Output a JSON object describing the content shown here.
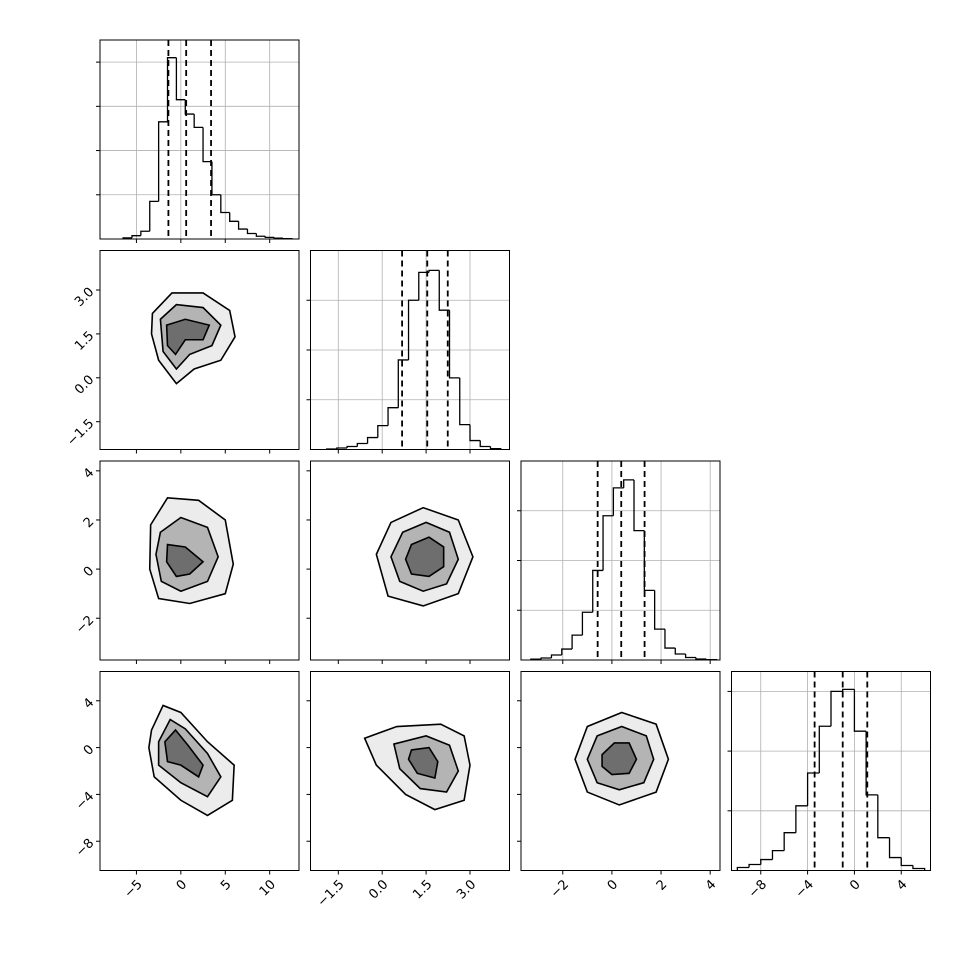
{
  "chart_data": [
    {
      "type": "histogram",
      "bins": [
        -6.5,
        -5.5,
        -4.5,
        -3.5,
        -2.5,
        -1.5,
        -0.5,
        0.5,
        1.5,
        2.5,
        3.5,
        4.5,
        5.5,
        6.5,
        7.5,
        8.5,
        9.5,
        10.5,
        11.5,
        12.5
      ],
      "counts": [
        10,
        30,
        70,
        340,
        1060,
        1640,
        1260,
        1130,
        1010,
        700,
        400,
        240,
        160,
        90,
        50,
        25,
        15,
        8,
        3
      ],
      "quantiles": [
        -1.4,
        0.6,
        3.4
      ],
      "xlim": [
        -9.1,
        13.3
      ],
      "ylim": [
        0,
        1800
      ],
      "xticks": [
        {
          "value": -5,
          "label": "−5"
        },
        0,
        5,
        10
      ],
      "yticks": [
        400,
        800,
        1200,
        1600
      ],
      "grid": true,
      "x_tick_labels": false,
      "y_tick_labels": false
    },
    {
      "type": "contour",
      "xlim": [
        -9.1,
        13.3
      ],
      "ylim": [
        -2.45,
        4.35
      ],
      "xticks": [
        {
          "value": -5,
          "label": "−5"
        },
        0,
        5,
        10
      ],
      "yticks": [
        {
          "value": -1.5,
          "label": "−1.5"
        },
        {
          "value": 0,
          "label": "0.0"
        },
        1.5,
        {
          "value": 3,
          "label": "3.0"
        }
      ],
      "x_tick_labels": false,
      "y_tick_labels": true,
      "contours": [
        {
          "color": "#ececec",
          "x": [
            -3.2,
            -1,
            2.5,
            5.5,
            6.1,
            4.5,
            1.5,
            -0.5,
            -2.5,
            -3.3
          ],
          "y": [
            2.2,
            2.9,
            2.9,
            2.3,
            1.4,
            0.6,
            0.3,
            -0.2,
            0.6,
            1.5
          ]
        },
        {
          "color": "#b4b4b4",
          "x": [
            -2.3,
            -0.5,
            2.5,
            4.5,
            3.5,
            1,
            -0.5,
            -2.0
          ],
          "y": [
            2.0,
            2.5,
            2.4,
            1.8,
            1.1,
            0.8,
            0.3,
            0.9
          ]
        },
        {
          "color": "#6e6e6e",
          "x": [
            -1.6,
            0.5,
            3.2,
            2.5,
            0.5,
            -0.6,
            -1.5
          ],
          "y": [
            1.8,
            2.0,
            1.8,
            1.3,
            1.3,
            0.8,
            1.1
          ]
        }
      ]
    },
    {
      "type": "histogram",
      "bins": [
        -1.9,
        -1.55,
        -1.2,
        -0.85,
        -0.5,
        -0.15,
        0.2,
        0.55,
        0.9,
        1.25,
        1.6,
        1.95,
        2.3,
        2.65,
        3.0,
        3.35,
        3.7,
        4.05
      ],
      "counts": [
        5,
        15,
        30,
        60,
        120,
        240,
        420,
        900,
        1500,
        1780,
        1800,
        1400,
        720,
        250,
        90,
        30,
        8
      ],
      "quantiles": [
        0.68,
        1.54,
        2.24
      ],
      "xlim": [
        -2.45,
        4.35
      ],
      "ylim": [
        0,
        2000
      ],
      "xticks": [
        {
          "value": -1.5,
          "label": "−1.5"
        },
        {
          "value": 0,
          "label": "0.0"
        },
        1.5,
        {
          "value": 3,
          "label": "3.0"
        }
      ],
      "yticks": [
        500,
        1000,
        1500
      ],
      "grid": true,
      "x_tick_labels": false,
      "y_tick_labels": false
    },
    {
      "type": "contour",
      "xlim": [
        -9.1,
        13.3
      ],
      "ylim": [
        -3.7,
        4.4
      ],
      "xticks": [
        {
          "value": -5,
          "label": "−5"
        },
        0,
        5,
        10
      ],
      "yticks": [
        {
          "value": -2,
          "label": "−2"
        },
        0,
        2,
        4
      ],
      "x_tick_labels": false,
      "y_tick_labels": true,
      "contours": [
        {
          "color": "#ececec",
          "x": [
            -3.4,
            -1.5,
            2,
            5,
            5.9,
            5,
            1,
            -2.5,
            -3.5
          ],
          "y": [
            1.8,
            2.9,
            2.8,
            2.0,
            0.2,
            -1.0,
            -1.4,
            -1.2,
            0
          ]
        },
        {
          "color": "#b4b4b4",
          "x": [
            -2.3,
            0,
            3,
            4.2,
            3,
            0,
            -2.2,
            -2.8
          ],
          "y": [
            1.5,
            2.1,
            1.7,
            0.5,
            -0.5,
            -0.9,
            -0.5,
            0.6
          ]
        },
        {
          "color": "#6e6e6e",
          "x": [
            -1.5,
            0.5,
            2.5,
            1,
            -0.5,
            -1.6
          ],
          "y": [
            1.0,
            0.9,
            0.3,
            -0.2,
            -0.3,
            0.3
          ]
        }
      ]
    },
    {
      "type": "contour",
      "xlim": [
        -2.45,
        4.35
      ],
      "ylim": [
        -3.7,
        4.4
      ],
      "xticks": [
        {
          "value": -1.5,
          "label": "−1.5"
        },
        {
          "value": 0,
          "label": "0.0"
        },
        1.5,
        {
          "value": 3,
          "label": "3.0"
        }
      ],
      "yticks": [
        {
          "value": -2,
          "label": "−2"
        },
        0,
        2,
        4
      ],
      "x_tick_labels": false,
      "y_tick_labels": false,
      "contours": [
        {
          "color": "#ececec",
          "x": [
            -0.2,
            0.3,
            1.4,
            2.6,
            3.1,
            2.6,
            1.4,
            0.2
          ],
          "y": [
            0.6,
            1.9,
            2.5,
            2.0,
            0.5,
            -1.0,
            -1.5,
            -1.1
          ]
        },
        {
          "color": "#b4b4b4",
          "x": [
            0.3,
            0.7,
            1.5,
            2.3,
            2.6,
            2.2,
            1.4,
            0.6
          ],
          "y": [
            0.5,
            1.5,
            1.9,
            1.5,
            0.4,
            -0.6,
            -0.9,
            -0.5
          ]
        },
        {
          "color": "#6e6e6e",
          "x": [
            0.8,
            1.0,
            1.6,
            2.1,
            2.1,
            1.6,
            1.0
          ],
          "y": [
            0.4,
            1.0,
            1.3,
            0.9,
            0.1,
            -0.3,
            -0.2
          ]
        }
      ]
    },
    {
      "type": "histogram",
      "bins": [
        -3.3,
        -2.88,
        -2.46,
        -2.04,
        -1.62,
        -1.2,
        -0.78,
        -0.36,
        0.06,
        0.48,
        0.9,
        1.32,
        1.74,
        2.16,
        2.58,
        3.0,
        3.42,
        3.84,
        4.26
      ],
      "counts": [
        8,
        20,
        50,
        110,
        250,
        480,
        900,
        1450,
        1730,
        1810,
        1300,
        700,
        310,
        120,
        60,
        25,
        10,
        4
      ],
      "quantiles": [
        -0.58,
        0.38,
        1.33
      ],
      "xlim": [
        -3.7,
        4.4
      ],
      "ylim": [
        0,
        2000
      ],
      "xticks": [
        {
          "value": -2,
          "label": "−2"
        },
        0,
        2,
        4
      ],
      "yticks": [
        500,
        1000,
        1500
      ],
      "grid": true,
      "x_tick_labels": false,
      "y_tick_labels": false
    },
    {
      "type": "contour",
      "xlim": [
        -9.1,
        13.3
      ],
      "ylim": [
        -10.5,
        6.5
      ],
      "xticks": [
        {
          "value": -5,
          "label": "−5"
        },
        0,
        5,
        10
      ],
      "yticks": [
        {
          "value": -8,
          "label": "−8"
        },
        {
          "value": -4,
          "label": "−4"
        },
        0,
        4
      ],
      "x_tick_labels": true,
      "y_tick_labels": true,
      "contours": [
        {
          "color": "#ececec",
          "x": [
            -3.3,
            -2,
            0,
            3,
            6,
            5.8,
            3,
            0,
            -3,
            -3.6
          ],
          "y": [
            1.5,
            3.6,
            3.0,
            0.5,
            -1.5,
            -4.5,
            -5.8,
            -4.5,
            -2.5,
            0
          ]
        },
        {
          "color": "#b4b4b4",
          "x": [
            -2.5,
            -1.2,
            0.5,
            3,
            4.5,
            3,
            0,
            -2.5
          ],
          "y": [
            0.5,
            2.4,
            1.6,
            -0.5,
            -2.5,
            -4.2,
            -3.0,
            -1.5
          ]
        },
        {
          "color": "#6e6e6e",
          "x": [
            -1.8,
            -0.6,
            0.8,
            2.5,
            2,
            0,
            -1.5
          ],
          "y": [
            0.5,
            1.5,
            0.2,
            -1.5,
            -2.5,
            -1.5,
            -1.2
          ]
        }
      ]
    },
    {
      "type": "contour",
      "xlim": [
        -2.45,
        4.35
      ],
      "ylim": [
        -10.5,
        6.5
      ],
      "xticks": [
        {
          "value": -1.5,
          "label": "−1.5"
        },
        {
          "value": 0,
          "label": "0.0"
        },
        1.5,
        {
          "value": 3,
          "label": "3.0"
        }
      ],
      "yticks": [
        {
          "value": -8,
          "label": "−8"
        },
        {
          "value": -4,
          "label": "−4"
        },
        0,
        4
      ],
      "x_tick_labels": true,
      "y_tick_labels": false,
      "contours": [
        {
          "color": "#ececec",
          "x": [
            -0.6,
            0.5,
            2,
            2.8,
            3.0,
            2.8,
            1.8,
            0.8,
            -0.2
          ],
          "y": [
            0.8,
            1.8,
            2.0,
            1.0,
            -1.5,
            -4.5,
            -5.3,
            -4.0,
            -1.5
          ]
        },
        {
          "color": "#b4b4b4",
          "x": [
            0.4,
            1.5,
            2.3,
            2.6,
            2.2,
            1.3,
            0.6
          ],
          "y": [
            0.3,
            1.0,
            0.2,
            -2.0,
            -3.8,
            -3.5,
            -1.8
          ]
        },
        {
          "color": "#6e6e6e",
          "x": [
            1.0,
            1.6,
            1.9,
            1.8,
            1.2,
            0.9
          ],
          "y": [
            -0.2,
            0,
            -1.2,
            -2.6,
            -2.2,
            -1.0
          ]
        }
      ]
    },
    {
      "type": "contour",
      "xlim": [
        -3.7,
        4.4
      ],
      "ylim": [
        -10.5,
        6.5
      ],
      "xticks": [
        {
          "value": -2,
          "label": "−2"
        },
        0,
        2,
        4
      ],
      "yticks": [
        {
          "value": -8,
          "label": "−8"
        },
        {
          "value": -4,
          "label": "−4"
        },
        0,
        4
      ],
      "x_tick_labels": true,
      "y_tick_labels": false,
      "contours": [
        {
          "color": "#ececec",
          "x": [
            -1.5,
            -1.0,
            0.4,
            1.8,
            2.3,
            1.8,
            0.3,
            -1.0
          ],
          "y": [
            -1,
            1.8,
            3.0,
            2.0,
            -1,
            -3.8,
            -4.9,
            -3.8
          ]
        },
        {
          "color": "#b4b4b4",
          "x": [
            -1.0,
            -0.6,
            0.4,
            1.4,
            1.7,
            1.3,
            0.3,
            -0.6
          ],
          "y": [
            -1,
            1.0,
            1.8,
            1.0,
            -1,
            -3,
            -3.6,
            -3.0
          ]
        },
        {
          "color": "#6e6e6e",
          "x": [
            -0.4,
            0.1,
            0.7,
            1.0,
            0.7,
            0,
            -0.4
          ],
          "y": [
            -0.6,
            0.4,
            0.4,
            -1,
            -2.2,
            -2.3,
            -1.6
          ]
        }
      ]
    },
    {
      "type": "histogram",
      "bins": [
        -10,
        -9,
        -8,
        -7,
        -6,
        -5,
        -4,
        -3,
        -2,
        -1,
        0,
        1,
        2,
        3,
        4,
        5,
        6
      ],
      "counts": [
        30,
        60,
        110,
        200,
        380,
        650,
        980,
        1450,
        1800,
        1820,
        1400,
        760,
        330,
        130,
        50,
        20
      ],
      "quantiles": [
        -3.4,
        -1.0,
        1.1
      ],
      "xlim": [
        -10.5,
        6.5
      ],
      "ylim": [
        0,
        2000
      ],
      "xticks": [
        {
          "value": -8,
          "label": "−8"
        },
        {
          "value": -4,
          "label": "−4"
        },
        0,
        4
      ],
      "yticks": [
        600,
        1200,
        1800
      ],
      "grid": true,
      "x_tick_labels": true,
      "y_tick_labels": false
    }
  ]
}
